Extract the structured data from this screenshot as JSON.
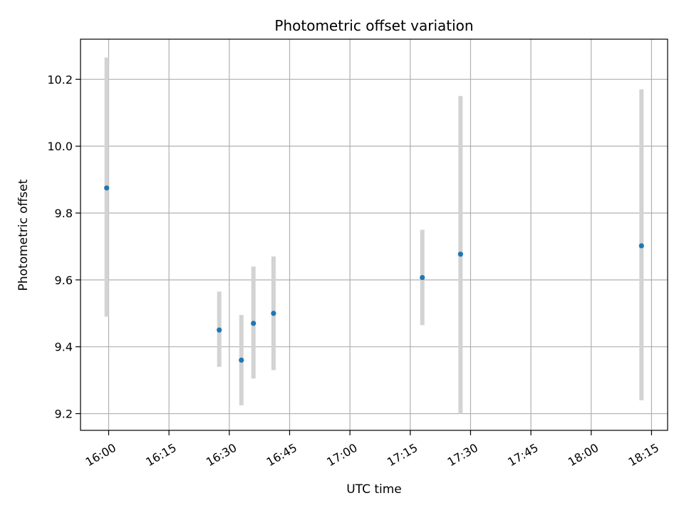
{
  "chart_data": {
    "type": "scatter",
    "title": "Photometric offset variation",
    "xlabel": "UTC time",
    "ylabel": "Photometric offset",
    "x_unit": "minutes after 16:00 UTC",
    "xlim": [
      -7,
      139
    ],
    "ylim": [
      9.15,
      10.32
    ],
    "xticks": [
      0,
      15,
      30,
      45,
      60,
      75,
      90,
      105,
      120,
      135
    ],
    "xtick_labels": [
      "16:00",
      "16:15",
      "16:30",
      "16:45",
      "17:00",
      "17:15",
      "17:30",
      "17:45",
      "18:00",
      "18:15"
    ],
    "yticks": [
      9.2,
      9.4,
      9.6,
      9.8,
      10.0,
      10.2
    ],
    "ytick_labels": [
      "9.2",
      "9.4",
      "9.6",
      "9.8",
      "10.0",
      "10.2"
    ],
    "grid": true,
    "point_color": "#1f77b4",
    "errorbar_color": "#d3d3d3",
    "points": [
      {
        "x": -0.5,
        "y": 9.875,
        "ylow": 9.49,
        "yhigh": 10.265
      },
      {
        "x": 27.5,
        "y": 9.45,
        "ylow": 9.34,
        "yhigh": 9.565
      },
      {
        "x": 33.0,
        "y": 9.36,
        "ylow": 9.225,
        "yhigh": 9.495
      },
      {
        "x": 36.0,
        "y": 9.47,
        "ylow": 9.305,
        "yhigh": 9.64
      },
      {
        "x": 41.0,
        "y": 9.5,
        "ylow": 9.33,
        "yhigh": 9.67
      },
      {
        "x": 78.0,
        "y": 9.607,
        "ylow": 9.465,
        "yhigh": 9.75
      },
      {
        "x": 87.5,
        "y": 9.677,
        "ylow": 9.2,
        "yhigh": 10.15
      },
      {
        "x": 132.5,
        "y": 9.702,
        "ylow": 9.24,
        "yhigh": 10.17
      }
    ]
  }
}
